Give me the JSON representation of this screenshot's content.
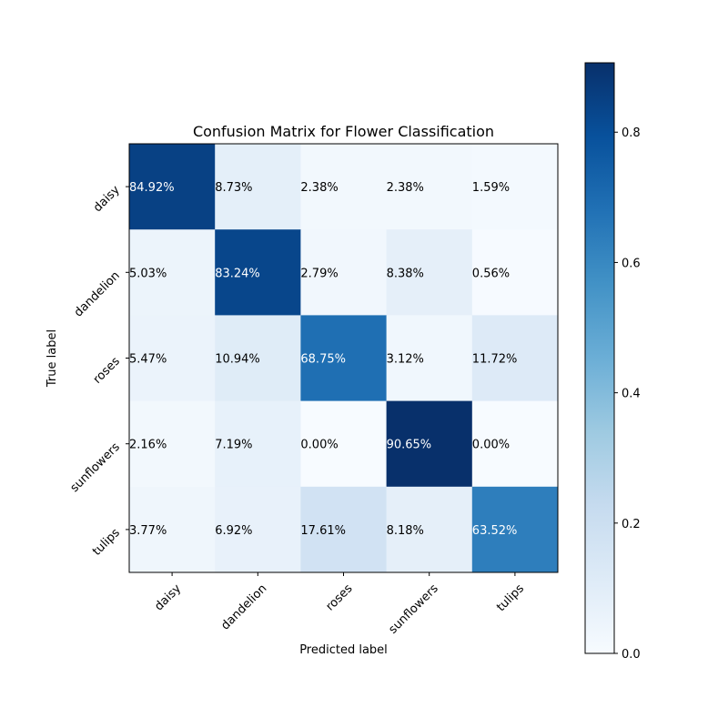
{
  "chart_data": {
    "type": "heatmap",
    "title": "Confusion Matrix for Flower Classification",
    "xlabel": "Predicted label",
    "ylabel": "True label",
    "x_categories": [
      "daisy",
      "dandelion",
      "roses",
      "sunflowers",
      "tulips"
    ],
    "y_categories": [
      "daisy",
      "dandelion",
      "roses",
      "sunflowers",
      "tulips"
    ],
    "values": [
      [
        0.8492,
        0.0873,
        0.0238,
        0.0238,
        0.0159
      ],
      [
        0.0503,
        0.8324,
        0.0279,
        0.0838,
        0.0056
      ],
      [
        0.0547,
        0.1094,
        0.6875,
        0.0312,
        0.1172
      ],
      [
        0.0216,
        0.0719,
        0.0,
        0.9065,
        0.0
      ],
      [
        0.0377,
        0.0692,
        0.1761,
        0.0818,
        0.6352
      ]
    ],
    "cell_labels": [
      [
        "84.92%",
        "8.73%",
        "2.38%",
        "2.38%",
        "1.59%"
      ],
      [
        "5.03%",
        "83.24%",
        "2.79%",
        "8.38%",
        "0.56%"
      ],
      [
        "5.47%",
        "10.94%",
        "68.75%",
        "3.12%",
        "11.72%"
      ],
      [
        "2.16%",
        "7.19%",
        "0.00%",
        "90.65%",
        "0.00%"
      ],
      [
        "3.77%",
        "6.92%",
        "17.61%",
        "8.18%",
        "63.52%"
      ]
    ],
    "colorbar": {
      "range": [
        0.0,
        0.9065
      ],
      "ticks": [
        0.0,
        0.2,
        0.4,
        0.6,
        0.8
      ],
      "tick_labels": [
        "0.0",
        "0.2",
        "0.4",
        "0.6",
        "0.8"
      ]
    },
    "colormap": "Blues",
    "colormap_stops": [
      "#f7fbff",
      "#deebf7",
      "#c6dbef",
      "#9ecae1",
      "#6baed6",
      "#4292c6",
      "#2171b5",
      "#08519c",
      "#08306b"
    ],
    "text_color_dark": "#000000",
    "text_color_light": "#ffffff",
    "grid": false
  }
}
